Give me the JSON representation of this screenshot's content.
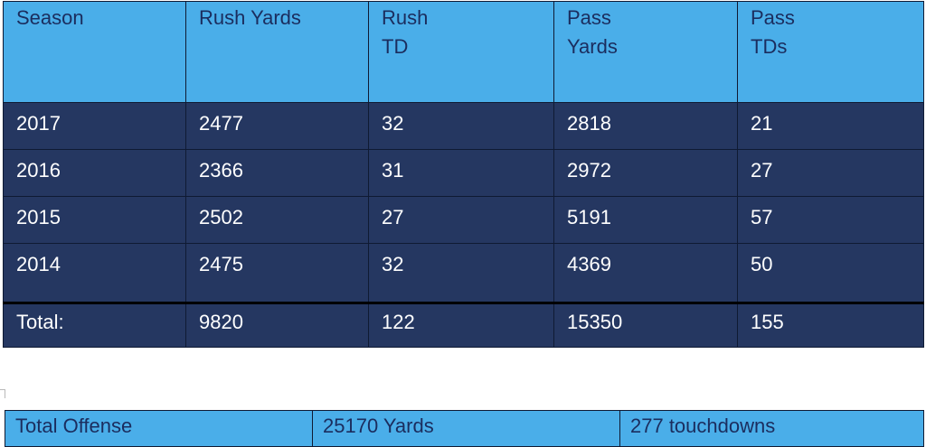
{
  "stats_table": {
    "headers": [
      "Season",
      "Rush Yards",
      "Rush TD",
      "Pass Yards",
      "Pass TDs"
    ],
    "rows": [
      [
        "2017",
        "2477",
        "32",
        "2818",
        "21"
      ],
      [
        "2016",
        "2366",
        "31",
        "2972",
        "27"
      ],
      [
        "2015",
        "2502",
        "27",
        "5191",
        "57"
      ],
      [
        "2014",
        "2475",
        "32",
        "4369",
        "50"
      ]
    ],
    "total": [
      "Total:",
      "9820",
      "122",
      "15350",
      "155"
    ]
  },
  "summary_table": {
    "cells": [
      "Total Offense",
      "25170 Yards",
      "277 touchdowns"
    ]
  },
  "colors": {
    "header_bg": "#4aaee9",
    "header_text": "#1b2d5e",
    "body_bg": "#253761",
    "body_text": "#ffffff"
  }
}
